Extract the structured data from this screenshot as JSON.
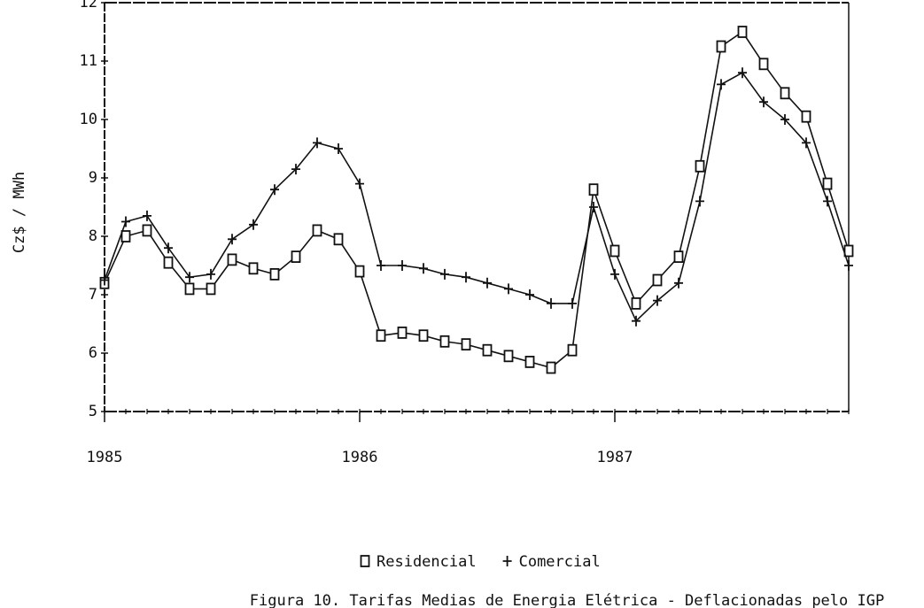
{
  "chart_data": {
    "type": "line",
    "y_label": "Cz$ / MWh",
    "caption": "Figura 10. Tarifas Medias de Energia Elétrica - Deflacionadas pelo IGP",
    "categories": [
      "1985",
      null,
      null,
      null,
      null,
      null,
      null,
      null,
      null,
      null,
      null,
      null,
      "1986",
      null,
      null,
      null,
      null,
      null,
      null,
      null,
      null,
      null,
      null,
      null,
      "1987",
      null,
      null,
      null,
      null,
      null,
      null,
      null,
      null,
      null,
      null,
      null
    ],
    "series": [
      {
        "name": "Residencial",
        "color": "#111111",
        "marker": "square",
        "values": [
          7.2,
          8.0,
          8.1,
          7.55,
          7.1,
          7.1,
          7.6,
          7.45,
          7.35,
          7.65,
          8.1,
          7.95,
          7.4,
          6.3,
          6.35,
          6.3,
          6.2,
          6.15,
          6.05,
          5.95,
          5.85,
          5.75,
          6.05,
          8.8,
          7.75,
          6.85,
          7.25,
          7.65,
          9.2,
          11.25,
          11.5,
          10.95,
          10.45,
          10.05,
          8.9,
          7.75
        ]
      },
      {
        "name": "Comercial",
        "color": "#111111",
        "marker": "plus",
        "values": [
          7.25,
          8.25,
          8.35,
          7.8,
          7.3,
          7.35,
          7.95,
          8.2,
          8.8,
          9.15,
          9.6,
          9.5,
          8.9,
          7.5,
          7.5,
          7.45,
          7.35,
          7.3,
          7.2,
          7.1,
          7.0,
          6.85,
          6.85,
          8.5,
          7.35,
          6.55,
          6.9,
          7.2,
          8.6,
          10.6,
          10.8,
          10.3,
          10.0,
          9.6,
          8.6,
          7.5
        ]
      }
    ],
    "ylim": [
      5,
      12
    ],
    "yticks": [
      5,
      6,
      7,
      8,
      9,
      10,
      11,
      12
    ],
    "grid": false
  }
}
